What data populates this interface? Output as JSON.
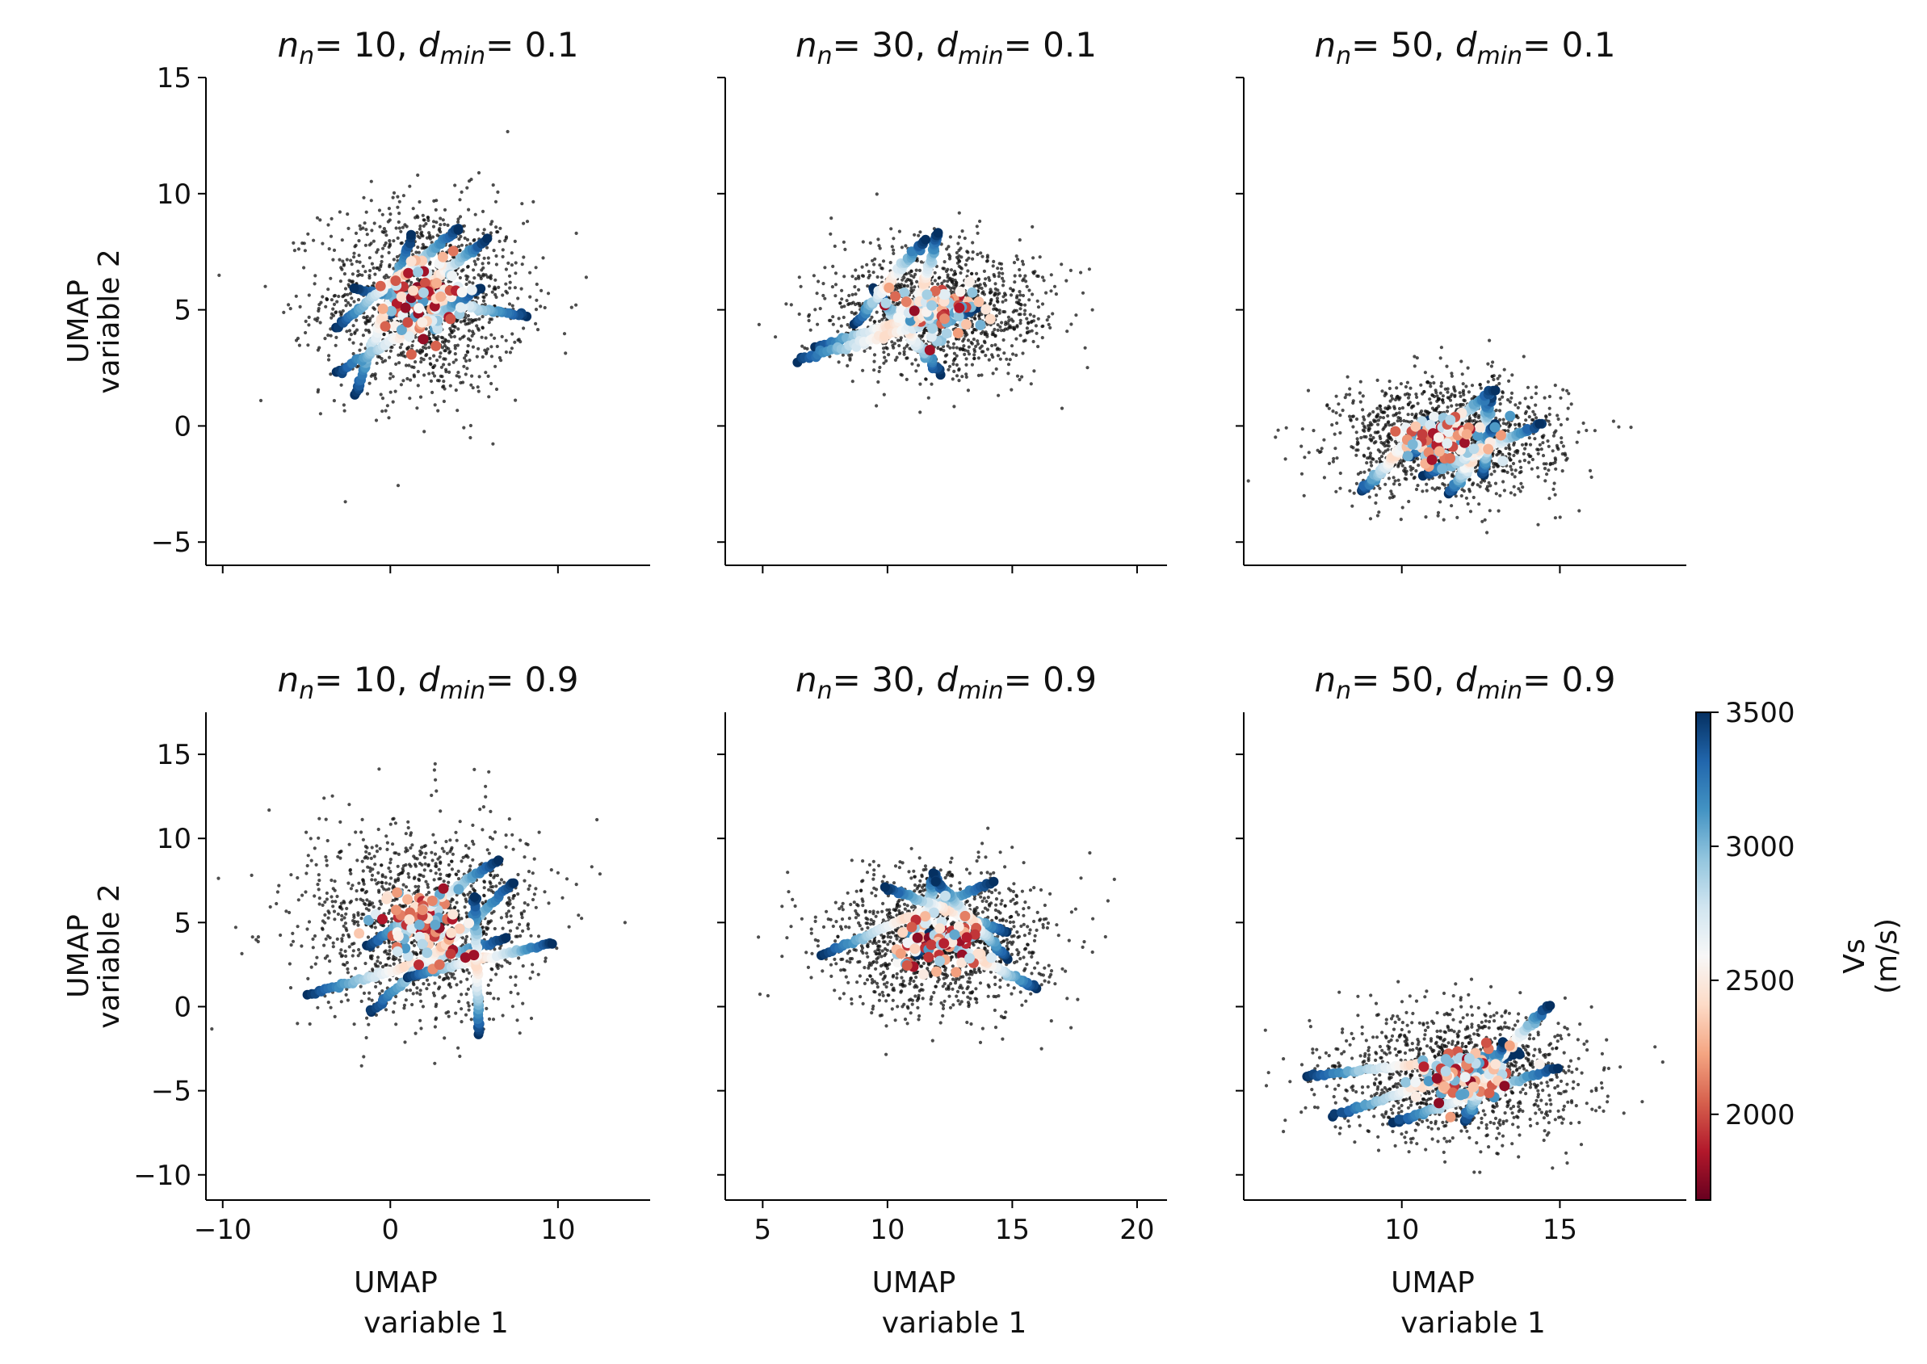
{
  "figure": {
    "ylabel_lines": [
      "UMAP",
      "variable 2"
    ],
    "xlabel_lines": [
      "UMAP",
      "variable 1"
    ],
    "title_template": {
      "n_prefix": "n",
      "n_sub": "n",
      "d_prefix": "d",
      "d_sub": "min",
      "eq": "= "
    }
  },
  "colorbar": {
    "label_lines": [
      "Vs",
      "(m/s)"
    ],
    "min": 1680,
    "max": 3500,
    "ticks": [
      2000,
      2500,
      3000,
      3500
    ],
    "colors": [
      "#67001f",
      "#b2182b",
      "#d6604d",
      "#f4a582",
      "#fddbc7",
      "#f7f7f7",
      "#d1e5f0",
      "#92c5de",
      "#4393c3",
      "#2166ac",
      "#053061"
    ]
  },
  "chart_data": [
    {
      "type": "scatter",
      "n_neighbors": "10",
      "min_dist": "0.1",
      "row": 0,
      "col": 0,
      "xlim": [
        -11,
        15.5
      ],
      "ylim": [
        -6,
        15
      ],
      "xticks": [
        -10,
        0,
        10
      ],
      "xtick_labels": [
        "",
        "",
        ""
      ],
      "yticks": [
        -5,
        0,
        5,
        10,
        15
      ],
      "ytick_labels": [
        "−5",
        "0",
        "5",
        "10",
        "15"
      ],
      "cloud": {
        "center": [
          2.0,
          5.5
        ],
        "spread": [
          5.5,
          3.8
        ]
      }
    },
    {
      "type": "scatter",
      "n_neighbors": "30",
      "min_dist": "0.1",
      "row": 0,
      "col": 1,
      "xlim": [
        3.5,
        21.2
      ],
      "ylim": [
        -6,
        15
      ],
      "xticks": [
        5,
        10,
        15,
        20
      ],
      "xtick_labels": [
        "",
        "",
        "",
        ""
      ],
      "yticks": [
        -5,
        0,
        5,
        10,
        15
      ],
      "ytick_labels": [
        "",
        "",
        "",
        "",
        ""
      ],
      "cloud": {
        "center": [
          12.0,
          5.0
        ],
        "spread": [
          3.8,
          2.5
        ]
      }
    },
    {
      "type": "scatter",
      "n_neighbors": "50",
      "min_dist": "0.1",
      "row": 0,
      "col": 2,
      "xlim": [
        5,
        19
      ],
      "ylim": [
        -6,
        15
      ],
      "xticks": [
        10,
        15
      ],
      "xtick_labels": [
        "",
        ""
      ],
      "yticks": [
        -5,
        0,
        5,
        10,
        15
      ],
      "ytick_labels": [
        "",
        "",
        "",
        "",
        ""
      ],
      "cloud": {
        "center": [
          11.5,
          -0.5
        ],
        "spread": [
          3.2,
          2.3
        ]
      }
    },
    {
      "type": "scatter",
      "n_neighbors": "10",
      "min_dist": "0.9",
      "row": 1,
      "col": 0,
      "xlim": [
        -11,
        15.5
      ],
      "ylim": [
        -11.5,
        17.5
      ],
      "xticks": [
        -10,
        0,
        10
      ],
      "xtick_labels": [
        "−10",
        "0",
        "10"
      ],
      "yticks": [
        -10,
        -5,
        0,
        5,
        10,
        15
      ],
      "ytick_labels": [
        "−10",
        "−5",
        "0",
        "5",
        "10",
        "15"
      ],
      "cloud": {
        "center": [
          2.0,
          5.0
        ],
        "spread": [
          6.5,
          5.2
        ]
      }
    },
    {
      "type": "scatter",
      "n_neighbors": "30",
      "min_dist": "0.9",
      "row": 1,
      "col": 1,
      "xlim": [
        3.5,
        21.2
      ],
      "ylim": [
        -11.5,
        17.5
      ],
      "xticks": [
        5,
        10,
        15,
        20
      ],
      "xtick_labels": [
        "5",
        "10",
        "15",
        "20"
      ],
      "yticks": [
        -10,
        -5,
        0,
        5,
        10,
        15
      ],
      "ytick_labels": [
        "",
        "",
        "",
        "",
        "",
        ""
      ],
      "cloud": {
        "center": [
          12.0,
          4.0
        ],
        "spread": [
          4.0,
          3.8
        ]
      }
    },
    {
      "type": "scatter",
      "n_neighbors": "50",
      "min_dist": "0.9",
      "row": 1,
      "col": 2,
      "xlim": [
        5,
        19
      ],
      "ylim": [
        -11.5,
        17.5
      ],
      "xticks": [
        10,
        15
      ],
      "xtick_labels": [
        "10",
        "15"
      ],
      "yticks": [
        -10,
        -5,
        0,
        5,
        10,
        15
      ],
      "ytick_labels": [
        "",
        "",
        "",
        "",
        "",
        ""
      ],
      "cloud": {
        "center": [
          11.8,
          -4.0
        ],
        "spread": [
          3.6,
          3.4
        ]
      }
    }
  ]
}
